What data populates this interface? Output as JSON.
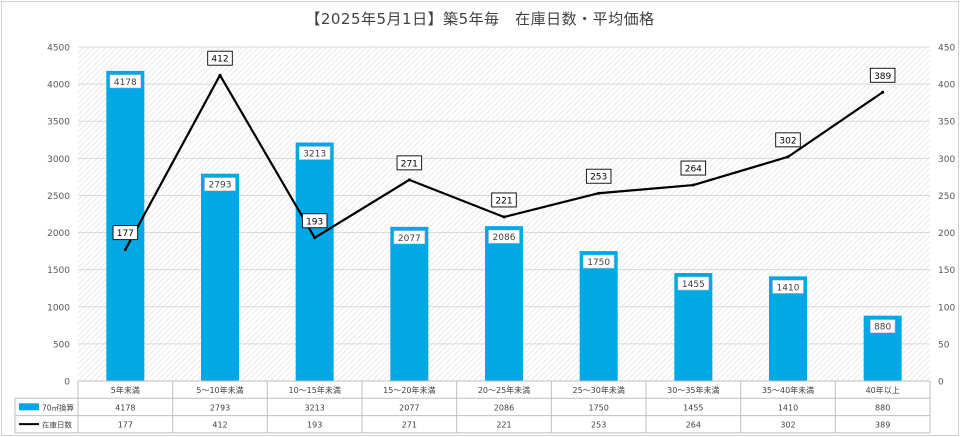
{
  "chart_data": {
    "type": "bar",
    "title": "【2025年5月1日】築5年毎　在庫日数・平均価格",
    "categories": [
      "5年未満",
      "5〜10年未満",
      "10〜15年未満",
      "15〜20年未満",
      "20〜25年未満",
      "25〜30年未満",
      "30〜35年未満",
      "35〜40年未満",
      "40年以上"
    ],
    "series": [
      {
        "name": "70㎡換算",
        "type": "bar",
        "axis": "left",
        "color": "#00a9e6",
        "values": [
          4178,
          2793,
          3213,
          2077,
          2086,
          1750,
          1455,
          1410,
          880
        ]
      },
      {
        "name": "在庫日数",
        "type": "line",
        "axis": "right",
        "color": "#000000",
        "values": [
          177,
          412,
          193,
          271,
          221,
          253,
          264,
          302,
          389
        ]
      }
    ],
    "yleft": {
      "min": 0,
      "max": 4500,
      "ticks": [
        "0",
        "500",
        "1000",
        "1500",
        "2000",
        "2500",
        "3000",
        "3500",
        "4000",
        "4500"
      ]
    },
    "yright": {
      "min": 0,
      "max": 450,
      "ticks": [
        "0",
        "50",
        "100",
        "150",
        "200",
        "250",
        "300",
        "350",
        "400",
        "450"
      ]
    },
    "grid": true,
    "data_table": true
  }
}
